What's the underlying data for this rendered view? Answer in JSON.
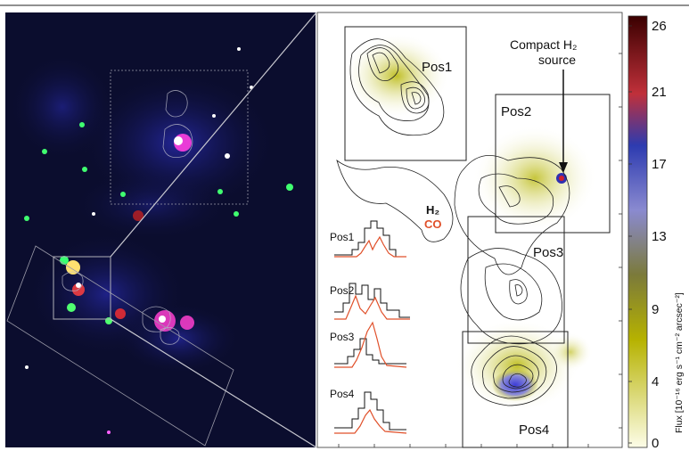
{
  "figure": {
    "positions": [
      "Pos1",
      "Pos2",
      "Pos3",
      "Pos4"
    ],
    "annotation": {
      "line1": "Compact H₂",
      "line2": "source"
    },
    "spectra_legend": {
      "h2": "H₂",
      "co": "CO"
    },
    "colorbar": {
      "ticks": [
        "26",
        "21",
        "17",
        "13",
        "9",
        "4",
        "0"
      ],
      "label": "Flux [10⁻¹⁶ erg s⁻¹ cm⁻² arcsec⁻²]"
    },
    "colors": {
      "h2_line": "#111111",
      "co_line": "#e0502a",
      "background_image": "#0b0d2e"
    }
  }
}
